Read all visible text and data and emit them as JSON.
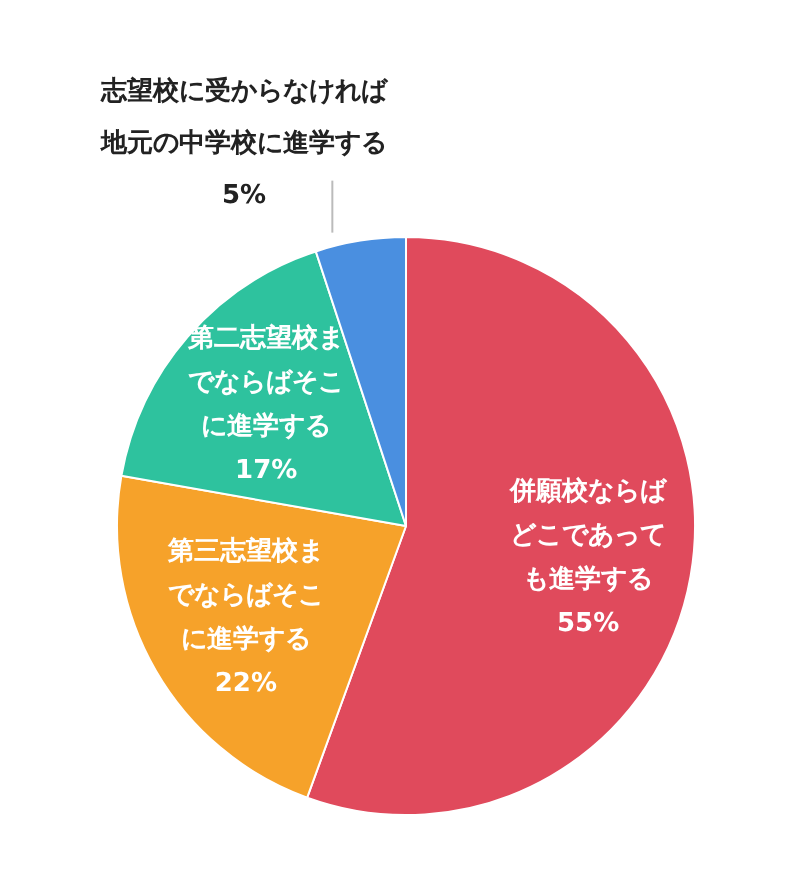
{
  "chart_data": {
    "type": "pie",
    "categories": [
      "併願校ならばどこであっても進学する",
      "第三志望校までならばそこに進学する",
      "第二志望校までならばそこに進学する",
      "志望校に受からなければ地元の中学校に進学する"
    ],
    "values": [
      55,
      22,
      17,
      5
    ],
    "colors": [
      "#e04a5c",
      "#f6a22a",
      "#2ec29e",
      "#4a8fe0"
    ],
    "value_labels": [
      "55%",
      "22%",
      "17%",
      "5%"
    ],
    "legend": false
  }
}
